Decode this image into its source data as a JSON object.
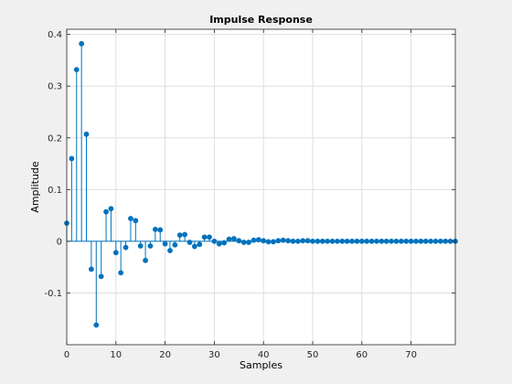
{
  "colors": {
    "figure_bg": "#f0f0f0",
    "axes_bg": "#ffffff",
    "grid": "#dfdfdf",
    "axis": "#262626",
    "series": "#0072bd"
  },
  "chart_data": {
    "type": "stem",
    "title": "Impulse Response",
    "xlabel": "Samples",
    "ylabel": "Amplitude",
    "xlim": [
      0,
      79
    ],
    "ylim": [
      -0.2,
      0.41
    ],
    "grid": true,
    "xticks": [
      0,
      10,
      20,
      30,
      40,
      50,
      60,
      70
    ],
    "xtick_labels": [
      "0",
      "10",
      "20",
      "30",
      "40",
      "50",
      "60",
      "70"
    ],
    "yticks": [
      -0.1,
      0,
      0.1,
      0.2,
      0.3,
      0.4
    ],
    "ytick_labels": [
      "-0.1",
      "0",
      "0.1",
      "0.2",
      "0.3",
      "0.4"
    ],
    "x": [
      0,
      1,
      2,
      3,
      4,
      5,
      6,
      7,
      8,
      9,
      10,
      11,
      12,
      13,
      14,
      15,
      16,
      17,
      18,
      19,
      20,
      21,
      22,
      23,
      24,
      25,
      26,
      27,
      28,
      29,
      30,
      31,
      32,
      33,
      34,
      35,
      36,
      37,
      38,
      39,
      40,
      41,
      42,
      43,
      44,
      45,
      46,
      47,
      48,
      49,
      50,
      51,
      52,
      53,
      54,
      55,
      56,
      57,
      58,
      59,
      60,
      61,
      62,
      63,
      64,
      65,
      66,
      67,
      68,
      69,
      70,
      71,
      72,
      73,
      74,
      75,
      76,
      77,
      78,
      79
    ],
    "values": [
      0.035,
      0.16,
      0.332,
      0.382,
      0.207,
      -0.054,
      -0.162,
      -0.068,
      0.057,
      0.063,
      -0.022,
      -0.061,
      -0.012,
      0.044,
      0.04,
      -0.009,
      -0.037,
      -0.009,
      0.023,
      0.022,
      -0.005,
      -0.018,
      -0.007,
      0.012,
      0.013,
      -0.002,
      -0.01,
      -0.006,
      0.008,
      0.008,
      0.0,
      -0.005,
      -0.003,
      0.004,
      0.005,
      0.001,
      -0.002,
      -0.002,
      0.002,
      0.003,
      0.001,
      -0.001,
      -0.001,
      0.001,
      0.002,
      0.001,
      0.0,
      0.0,
      0.001,
      0.001,
      0.0,
      0.0,
      0.0,
      0.0,
      0.0,
      0.0,
      0.0,
      0.0,
      0.0,
      0.0,
      0.0,
      0.0,
      0.0,
      0.0,
      0.0,
      0.0,
      0.0,
      0.0,
      0.0,
      0.0,
      0.0,
      0.0,
      0.0,
      0.0,
      0.0,
      0.0,
      0.0,
      0.0,
      0.0,
      0.0
    ]
  }
}
